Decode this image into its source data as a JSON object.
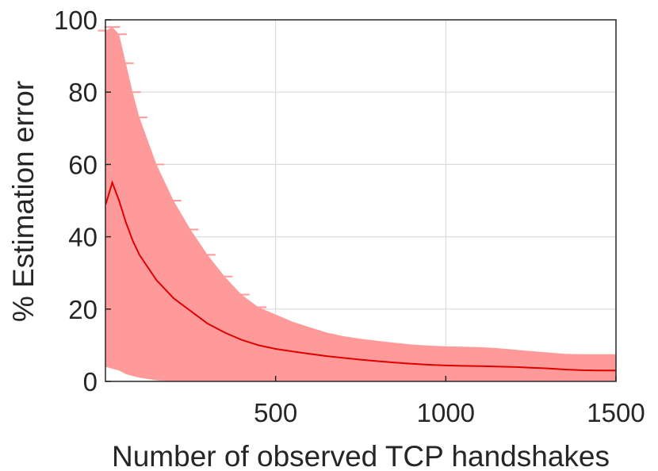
{
  "chart_data": {
    "type": "line",
    "title": "",
    "xlabel": "Number of observed TCP handshakes",
    "ylabel": "% Estimation error",
    "xlim": [
      0,
      1500
    ],
    "ylim": [
      0,
      100
    ],
    "xticks": [
      500,
      1000,
      1500
    ],
    "xtick_labels": [
      "500",
      "1000",
      "1500"
    ],
    "yticks": [
      0,
      20,
      40,
      60,
      80,
      100
    ],
    "ytick_labels": [
      "0",
      "20",
      "40",
      "60",
      "80",
      "100"
    ],
    "grid": true,
    "legend": "none",
    "colors": {
      "mean": "#e00000",
      "band": "#ff9a9a",
      "axis": "#262626",
      "grid": "#dcdcdc"
    },
    "series": [
      {
        "x": [
          1,
          20,
          40,
          60,
          80,
          100,
          150,
          200,
          250,
          300,
          350,
          400,
          450,
          500,
          550,
          600,
          650,
          700,
          750,
          800,
          850,
          900,
          950,
          1000,
          1050,
          1100,
          1150,
          1200,
          1250,
          1300,
          1350,
          1400,
          1450,
          1500
        ],
        "y": [
          49,
          55,
          50,
          44,
          39,
          35,
          28,
          23,
          19.5,
          16,
          13.5,
          11.5,
          10,
          9,
          8.3,
          7.6,
          7,
          6.5,
          6,
          5.6,
          5.2,
          4.9,
          4.6,
          4.4,
          4.3,
          4.2,
          4.1,
          4,
          3.8,
          3.6,
          3.3,
          3.1,
          3,
          3
        ],
        "upper": [
          97,
          98,
          96,
          88,
          80,
          73,
          60,
          50,
          42,
          35,
          29,
          24,
          20.5,
          18.5,
          16.5,
          15,
          13.5,
          12.5,
          11.8,
          11.2,
          10.7,
          10.2,
          9.9,
          9.7,
          9.6,
          9.5,
          9.2,
          8.8,
          8.4,
          8,
          7.6,
          7.5,
          7.5,
          7.5
        ],
        "lower": [
          4,
          3.5,
          3,
          2,
          1.5,
          1,
          0.3,
          0,
          0,
          0,
          0,
          0,
          0,
          0,
          0,
          0,
          0,
          0,
          0,
          0,
          0,
          0,
          0,
          0,
          0,
          0,
          0,
          0,
          0,
          0,
          0,
          0,
          0,
          0
        ]
      }
    ]
  }
}
